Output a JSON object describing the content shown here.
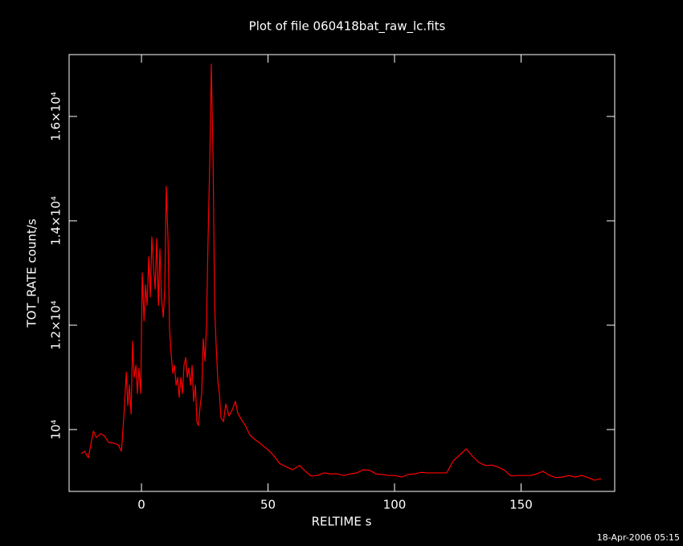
{
  "chart_data": {
    "type": "line",
    "title": "Plot of file 060418bat_raw_lc.fits",
    "x_label": "RELTIME  s",
    "y_label": "TOT_RATE  count/s",
    "annotation": "18-Apr-2006 05:15",
    "color": "#ff0000",
    "x": [
      -23.8,
      -22.5,
      -21,
      -19,
      -17.8,
      -16.2,
      -14.6,
      -13,
      -10.8,
      -9.2,
      -7.9,
      -7,
      -6,
      -5.4,
      -4.8,
      -4.1,
      -3.5,
      -2.9,
      -2.2,
      -1.6,
      -1,
      -0.3,
      0.3,
      1,
      1.6,
      2.2,
      2.9,
      3.5,
      4.1,
      4.8,
      5.4,
      6,
      6.7,
      7.3,
      7.9,
      8.6,
      9.2,
      9.8,
      10.5,
      11.1,
      11.7,
      12.4,
      13,
      13.7,
      14.3,
      14.9,
      15.6,
      16.2,
      16.8,
      17.5,
      18.1,
      18.7,
      19.4,
      20,
      20.6,
      21.3,
      21.9,
      22.5,
      23.2,
      23.8,
      24.4,
      25.1,
      25.7,
      26.3,
      27,
      27.6,
      28.3,
      28.9,
      29.5,
      30.2,
      30.8,
      31.4,
      32.4,
      33.3,
      34.6,
      35.9,
      37.1,
      38.1,
      39.4,
      41,
      42.9,
      45.1,
      47.3,
      49.8,
      52.1,
      54.6,
      57.5,
      59.7,
      62.5,
      64.8,
      67,
      69.5,
      72.1,
      74.9,
      77.5,
      80,
      82.5,
      85.1,
      87.6,
      90.2,
      92.7,
      95.2,
      97.8,
      100.3,
      102.9,
      105.4,
      107.9,
      110.5,
      113,
      115.6,
      118.1,
      120.6,
      123.2,
      125.7,
      128.3,
      130.8,
      133.3,
      135.9,
      138.4,
      141,
      143.5,
      146,
      148.6,
      151.1,
      153.7,
      156.2,
      158.7,
      161.3,
      163.8,
      166.3,
      168.9,
      171.4,
      174,
      176.5,
      179,
      181.6
    ],
    "values": [
      9538,
      9585,
      9460,
      9970,
      9846,
      9923,
      9877,
      9754,
      9738,
      9708,
      9585,
      10230,
      11100,
      10460,
      10850,
      10300,
      11690,
      11000,
      11230,
      10690,
      11180,
      10690,
      13000,
      12080,
      12770,
      12380,
      13310,
      12540,
      13690,
      13080,
      12690,
      13660,
      12380,
      13460,
      12540,
      12150,
      12690,
      14660,
      13620,
      11920,
      11460,
      11080,
      11230,
      10850,
      11000,
      10620,
      11000,
      10690,
      11230,
      11380,
      11000,
      11180,
      10850,
      11230,
      10540,
      10850,
      10150,
      10080,
      10460,
      10690,
      11740,
      11310,
      12000,
      13620,
      15150,
      17000,
      15150,
      12380,
      11620,
      10920,
      10690,
      10230,
      10150,
      10490,
      10260,
      10380,
      10540,
      10310,
      10200,
      10080,
      9890,
      9800,
      9720,
      9620,
      9510,
      9350,
      9280,
      9230,
      9310,
      9200,
      9110,
      9120,
      9170,
      9150,
      9150,
      9120,
      9150,
      9170,
      9230,
      9220,
      9150,
      9140,
      9120,
      9120,
      9090,
      9140,
      9150,
      9180,
      9170,
      9170,
      9170,
      9170,
      9400,
      9510,
      9630,
      9490,
      9370,
      9310,
      9320,
      9280,
      9220,
      9110,
      9120,
      9120,
      9120,
      9150,
      9200,
      9120,
      9080,
      9090,
      9120,
      9090,
      9120,
      9080,
      9030,
      9060
    ],
    "xlim": [
      -28.6,
      187
    ],
    "ylim": [
      8815,
      17185
    ],
    "xticks": [
      0,
      50,
      100,
      150
    ],
    "yticks": [
      {
        "value": 10000,
        "label": "10⁴"
      },
      {
        "value": 12000,
        "label": "1.2×10⁴"
      },
      {
        "value": 14000,
        "label": "1.4×10⁴"
      },
      {
        "value": 16000,
        "label": "1.6×10⁴"
      }
    ]
  }
}
